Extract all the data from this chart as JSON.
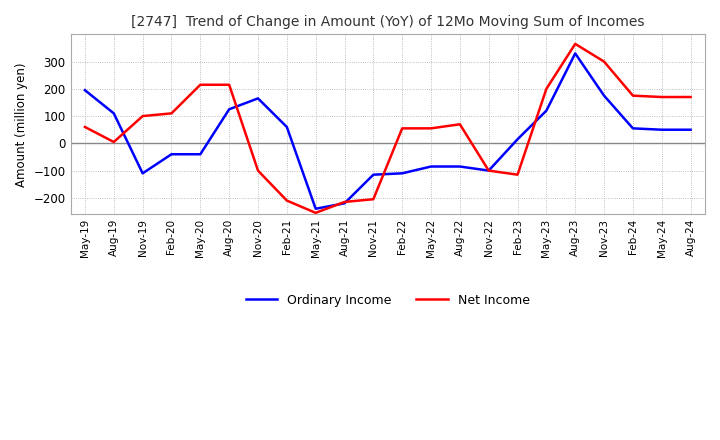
{
  "title": "[2747]  Trend of Change in Amount (YoY) of 12Mo Moving Sum of Incomes",
  "ylabel": "Amount (million yen)",
  "ylim": [
    -260,
    400
  ],
  "yticks": [
    -200,
    -100,
    0,
    100,
    200,
    300
  ],
  "background_color": "#ffffff",
  "grid_color": "#aaaaaa",
  "ordinary_income_color": "#0000ff",
  "net_income_color": "#ff0000",
  "x_labels": [
    "May-19",
    "Aug-19",
    "Nov-19",
    "Feb-20",
    "May-20",
    "Aug-20",
    "Nov-20",
    "Feb-21",
    "May-21",
    "Aug-21",
    "Nov-21",
    "Feb-22",
    "May-22",
    "Aug-22",
    "Nov-22",
    "Feb-23",
    "May-23",
    "Aug-23",
    "Nov-23",
    "Feb-24",
    "May-24",
    "Aug-24"
  ],
  "ordinary_income": [
    195,
    110,
    -110,
    -40,
    -40,
    125,
    165,
    60,
    -240,
    -220,
    -115,
    -110,
    -85,
    -85,
    -100,
    15,
    120,
    330,
    175,
    55,
    50,
    50
  ],
  "net_income": [
    60,
    5,
    100,
    110,
    215,
    215,
    -100,
    -210,
    -255,
    -215,
    -205,
    55,
    55,
    70,
    -100,
    -115,
    200,
    365,
    300,
    175,
    170,
    170
  ]
}
